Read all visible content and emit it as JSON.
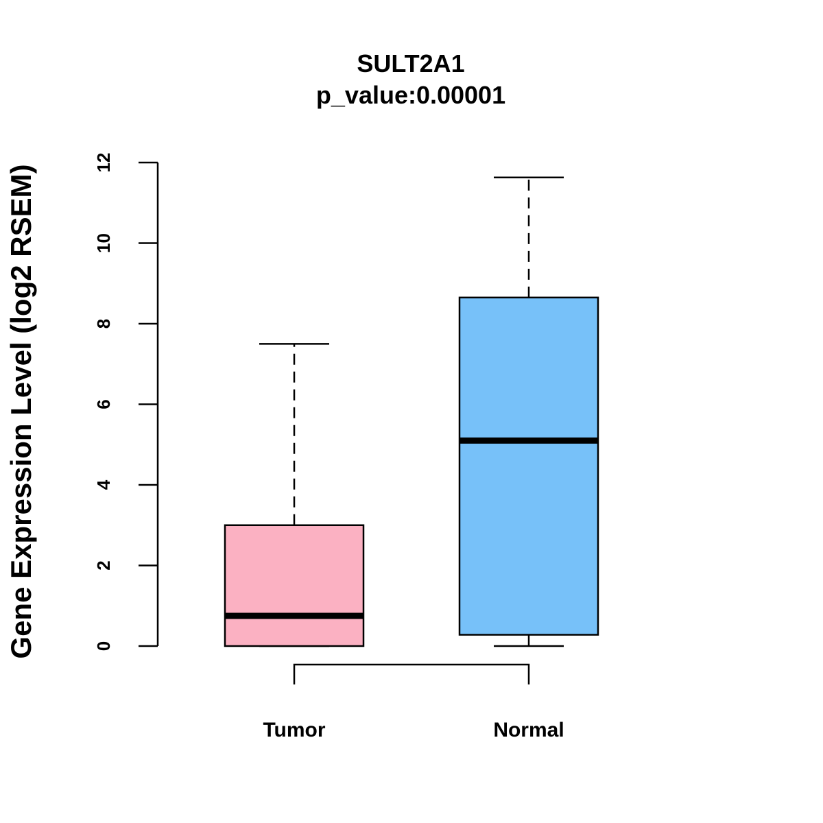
{
  "chart_data": {
    "type": "box",
    "title": "SULT2A1",
    "subtitle": "p_value:0.00001",
    "ylabel": "Gene Expression Level (log2 RSEM)",
    "xlabel": "",
    "ylim": [
      0,
      12
    ],
    "yticks": [
      0,
      2,
      4,
      6,
      8,
      10,
      12
    ],
    "grid": false,
    "categories": [
      "Tumor",
      "Normal"
    ],
    "boxes": [
      {
        "category": "Tumor",
        "min": 0.0,
        "q1": 0.0,
        "median": 0.75,
        "q3": 3.0,
        "max": 7.5,
        "color": "#FBB1C2"
      },
      {
        "category": "Normal",
        "min": 0.0,
        "q1": 0.28,
        "median": 5.1,
        "q3": 8.65,
        "max": 11.63,
        "color": "#77C1F9"
      }
    ],
    "comparison_bracket": [
      "Tumor",
      "Normal"
    ]
  }
}
